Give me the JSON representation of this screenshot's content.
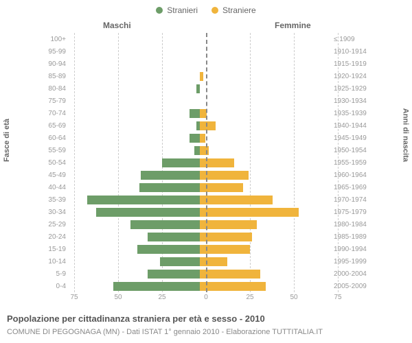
{
  "legend": {
    "male": {
      "label": "Stranieri",
      "color": "#6d9d68"
    },
    "female": {
      "label": "Straniere",
      "color": "#f0b43c"
    }
  },
  "columns": {
    "male": "Maschi",
    "female": "Femmine"
  },
  "axis": {
    "left_title": "Fasce di età",
    "right_title": "Anni di nascita",
    "x_ticks": [
      75,
      50,
      25,
      0,
      25,
      50,
      75
    ],
    "x_max": 75,
    "grid_positions": [
      -75,
      -50,
      -25,
      0,
      25,
      50,
      75
    ],
    "grid_color": "#cccccc"
  },
  "rows": [
    {
      "age": "100+",
      "birth": "≤ 1909",
      "m": 0,
      "f": 0
    },
    {
      "age": "95-99",
      "birth": "1910-1914",
      "m": 0,
      "f": 0
    },
    {
      "age": "90-94",
      "birth": "1915-1919",
      "m": 0,
      "f": 0
    },
    {
      "age": "85-89",
      "birth": "1920-1924",
      "m": 0,
      "f": 2
    },
    {
      "age": "80-84",
      "birth": "1925-1929",
      "m": 2,
      "f": 0
    },
    {
      "age": "75-79",
      "birth": "1930-1934",
      "m": 0,
      "f": 0
    },
    {
      "age": "70-74",
      "birth": "1935-1939",
      "m": 6,
      "f": 4
    },
    {
      "age": "65-69",
      "birth": "1940-1944",
      "m": 2,
      "f": 9
    },
    {
      "age": "60-64",
      "birth": "1945-1949",
      "m": 6,
      "f": 3
    },
    {
      "age": "55-59",
      "birth": "1950-1954",
      "m": 3,
      "f": 5
    },
    {
      "age": "50-54",
      "birth": "1955-1959",
      "m": 22,
      "f": 20
    },
    {
      "age": "45-49",
      "birth": "1960-1964",
      "m": 34,
      "f": 28
    },
    {
      "age": "40-44",
      "birth": "1965-1969",
      "m": 35,
      "f": 25
    },
    {
      "age": "35-39",
      "birth": "1970-1974",
      "m": 65,
      "f": 42
    },
    {
      "age": "30-34",
      "birth": "1975-1979",
      "m": 60,
      "f": 57
    },
    {
      "age": "25-29",
      "birth": "1980-1984",
      "m": 40,
      "f": 33
    },
    {
      "age": "20-24",
      "birth": "1985-1989",
      "m": 30,
      "f": 30
    },
    {
      "age": "15-19",
      "birth": "1990-1994",
      "m": 36,
      "f": 29
    },
    {
      "age": "10-14",
      "birth": "1995-1999",
      "m": 23,
      "f": 16
    },
    {
      "age": "5-9",
      "birth": "2000-2004",
      "m": 30,
      "f": 35
    },
    {
      "age": "0-4",
      "birth": "2005-2009",
      "m": 50,
      "f": 38
    }
  ],
  "colors": {
    "male_bar": "#6d9d68",
    "female_bar": "#f0b43c",
    "background": "#ffffff",
    "tick_text": "#999999"
  },
  "caption": "Popolazione per cittadinanza straniera per età e sesso - 2010",
  "subcaption": "COMUNE DI PEGOGNAGA (MN) - Dati ISTAT 1° gennaio 2010 - Elaborazione TUTTITALIA.IT",
  "chart_type": "population-pyramid"
}
